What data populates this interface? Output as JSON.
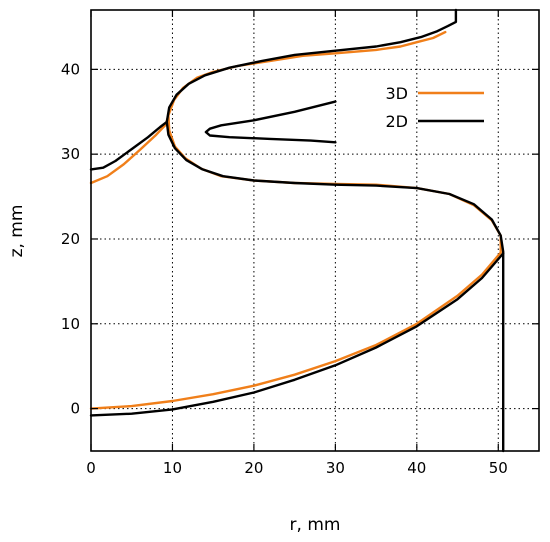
{
  "chart_data": {
    "type": "line",
    "title": "",
    "xlabel": "r, mm",
    "ylabel": "z, mm",
    "xlim": [
      0,
      55
    ],
    "ylim": [
      -5,
      47
    ],
    "xticks": [
      0,
      10,
      20,
      30,
      40,
      50
    ],
    "yticks": [
      0,
      10,
      20,
      30,
      40
    ],
    "grid": true,
    "legend_position": "top-right",
    "series": [
      {
        "name": "3D",
        "color": "#f07f1a",
        "segments": [
          [
            [
              0.0,
              26.6
            ],
            [
              2.0,
              27.4
            ],
            [
              4.0,
              28.8
            ],
            [
              6.0,
              30.5
            ],
            [
              8.0,
              32.3
            ],
            [
              9.2,
              33.5
            ],
            [
              9.5,
              34.6
            ],
            [
              10.2,
              36.4
            ],
            [
              11.3,
              37.8
            ],
            [
              13.0,
              39.0
            ],
            [
              15.0,
              39.7
            ],
            [
              18.0,
              40.4
            ],
            [
              22.0,
              41.0
            ],
            [
              26.0,
              41.6
            ],
            [
              30.0,
              41.9
            ],
            [
              35.0,
              42.3
            ],
            [
              38.0,
              42.7
            ],
            [
              40.0,
              43.2
            ],
            [
              42.0,
              43.7
            ],
            [
              43.5,
              44.4
            ]
          ],
          [
            [
              9.5,
              34.6
            ],
            [
              9.6,
              32.8
            ],
            [
              10.3,
              30.9
            ],
            [
              11.6,
              29.5
            ],
            [
              13.5,
              28.3
            ],
            [
              16.0,
              27.4
            ],
            [
              20.0,
              26.9
            ],
            [
              25.0,
              26.6
            ],
            [
              30.0,
              26.5
            ],
            [
              35.0,
              26.4
            ],
            [
              40.0,
              26.0
            ],
            [
              44.0,
              25.3
            ],
            [
              47.0,
              24.0
            ],
            [
              49.2,
              22.2
            ],
            [
              50.3,
              20.4
            ],
            [
              50.3,
              18.5
            ]
          ],
          [
            [
              0.0,
              0.0
            ],
            [
              5.0,
              0.3
            ],
            [
              10.0,
              0.9
            ],
            [
              15.0,
              1.7
            ],
            [
              20.0,
              2.7
            ],
            [
              25.0,
              4.0
            ],
            [
              30.0,
              5.6
            ],
            [
              35.0,
              7.5
            ],
            [
              40.0,
              10.0
            ],
            [
              45.0,
              13.3
            ],
            [
              48.0,
              15.8
            ],
            [
              50.3,
              18.4
            ]
          ]
        ]
      },
      {
        "name": "2D",
        "color": "#000000",
        "segments": [
          [
            [
              0.0,
              28.2
            ],
            [
              1.5,
              28.4
            ],
            [
              3.0,
              29.2
            ],
            [
              5.0,
              30.6
            ],
            [
              7.0,
              32.0
            ],
            [
              8.5,
              33.2
            ],
            [
              9.3,
              33.8
            ]
          ],
          [
            [
              9.3,
              33.8
            ],
            [
              9.6,
              35.5
            ],
            [
              10.5,
              37.0
            ],
            [
              12.0,
              38.3
            ],
            [
              14.0,
              39.3
            ],
            [
              17.0,
              40.2
            ],
            [
              21.0,
              41.0
            ],
            [
              25.0,
              41.7
            ],
            [
              30.0,
              42.2
            ],
            [
              35.0,
              42.7
            ],
            [
              38.0,
              43.2
            ],
            [
              40.5,
              43.8
            ],
            [
              42.5,
              44.5
            ],
            [
              43.8,
              45.1
            ],
            [
              44.8,
              45.6
            ],
            [
              44.8,
              47.0
            ]
          ],
          [
            [
              9.3,
              33.8
            ],
            [
              9.5,
              32.3
            ],
            [
              10.3,
              30.7
            ],
            [
              11.7,
              29.3
            ],
            [
              13.7,
              28.2
            ],
            [
              16.2,
              27.4
            ],
            [
              20.0,
              26.9
            ],
            [
              25.0,
              26.6
            ],
            [
              30.0,
              26.4
            ],
            [
              35.0,
              26.3
            ],
            [
              40.0,
              26.0
            ],
            [
              44.0,
              25.3
            ],
            [
              47.0,
              24.1
            ],
            [
              49.2,
              22.3
            ],
            [
              50.3,
              20.4
            ],
            [
              50.6,
              18.5
            ],
            [
              50.6,
              -5.0
            ]
          ],
          [
            [
              30.0,
              36.2
            ],
            [
              25.0,
              35.0
            ],
            [
              20.0,
              34.0
            ],
            [
              16.0,
              33.4
            ],
            [
              14.6,
              33.0
            ],
            [
              14.1,
              32.6
            ],
            [
              14.6,
              32.2
            ],
            [
              17.0,
              32.0
            ],
            [
              22.0,
              31.8
            ],
            [
              27.0,
              31.6
            ],
            [
              30.0,
              31.4
            ]
          ],
          [
            [
              0.0,
              -0.8
            ],
            [
              5.0,
              -0.6
            ],
            [
              10.0,
              -0.1
            ],
            [
              15.0,
              0.8
            ],
            [
              20.0,
              1.9
            ],
            [
              25.0,
              3.4
            ],
            [
              30.0,
              5.1
            ],
            [
              35.0,
              7.2
            ],
            [
              40.0,
              9.7
            ],
            [
              45.0,
              12.9
            ],
            [
              48.0,
              15.4
            ],
            [
              50.6,
              18.3
            ]
          ]
        ]
      }
    ]
  }
}
